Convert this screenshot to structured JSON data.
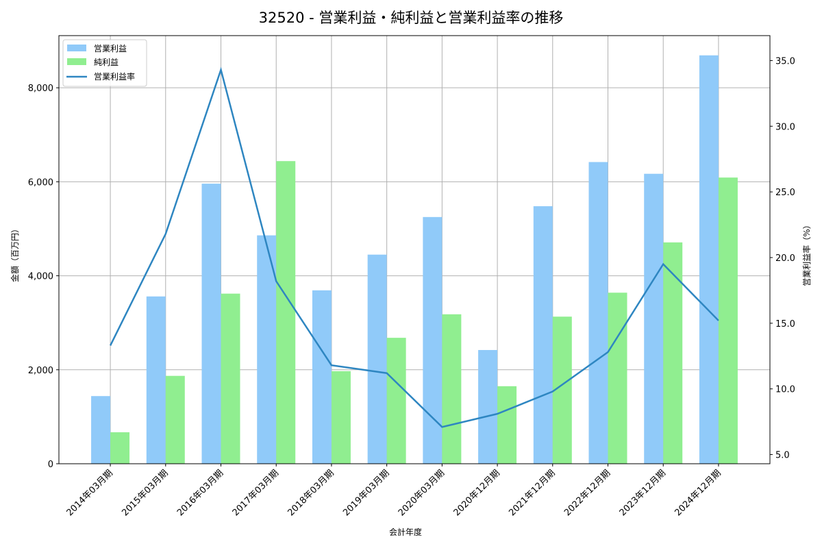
{
  "title": "32520 - 営業利益・純利益と営業利益率の推移",
  "colors": {
    "operating_profit": "#90caf9",
    "net_profit": "#90ee90",
    "margin_line": "#2e86c1",
    "grid": "#b0b0b0"
  },
  "legend": {
    "items": [
      {
        "label": "営業利益",
        "type": "bar",
        "color": "#90caf9"
      },
      {
        "label": "純利益",
        "type": "bar",
        "color": "#90ee90"
      },
      {
        "label": "営業利益率",
        "type": "line",
        "color": "#2e86c1"
      }
    ]
  },
  "axes": {
    "xlabel": "会計年度",
    "ylabel_left": "金額（百万円）",
    "ylabel_right": "営業利益率（%）",
    "left_ticks": [
      "0",
      "2,000",
      "4,000",
      "6,000",
      "8,000"
    ],
    "right_ticks": [
      "5.0",
      "10.0",
      "15.0",
      "20.0",
      "25.0",
      "30.0",
      "35.0"
    ]
  },
  "chart_data": {
    "type": "bar",
    "title": "32520 - 営業利益・純利益と営業利益率の推移",
    "xlabel": "会計年度",
    "ylabel": "金額（百万円）",
    "ylabel_right": "営業利益率（%）",
    "categories": [
      "2014年03月期",
      "2015年03月期",
      "2016年03月期",
      "2017年03月期",
      "2018年03月期",
      "2019年03月期",
      "2020年03月期",
      "2020年12月期",
      "2021年12月期",
      "2022年12月期",
      "2023年12月期",
      "2024年12月期"
    ],
    "series": [
      {
        "name": "営業利益",
        "type": "bar",
        "axis": "left",
        "color": "#90caf9",
        "values": [
          1440,
          3560,
          5960,
          4860,
          3690,
          4450,
          5250,
          2420,
          5480,
          6420,
          6170,
          8690
        ]
      },
      {
        "name": "純利益",
        "type": "bar",
        "axis": "left",
        "color": "#90ee90",
        "values": [
          670,
          1870,
          3620,
          6440,
          1970,
          2680,
          3180,
          1650,
          3130,
          3640,
          4710,
          6090
        ]
      },
      {
        "name": "営業利益率",
        "type": "line",
        "axis": "right",
        "color": "#2e86c1",
        "values": [
          13.3,
          21.8,
          34.3,
          18.2,
          11.8,
          11.2,
          7.1,
          8.1,
          9.8,
          12.8,
          19.5,
          15.2
        ]
      }
    ],
    "ylim": [
      0,
      9110
    ],
    "ylim_right": [
      4.3,
      36.9
    ],
    "grid": true,
    "legend_position": "upper left"
  }
}
